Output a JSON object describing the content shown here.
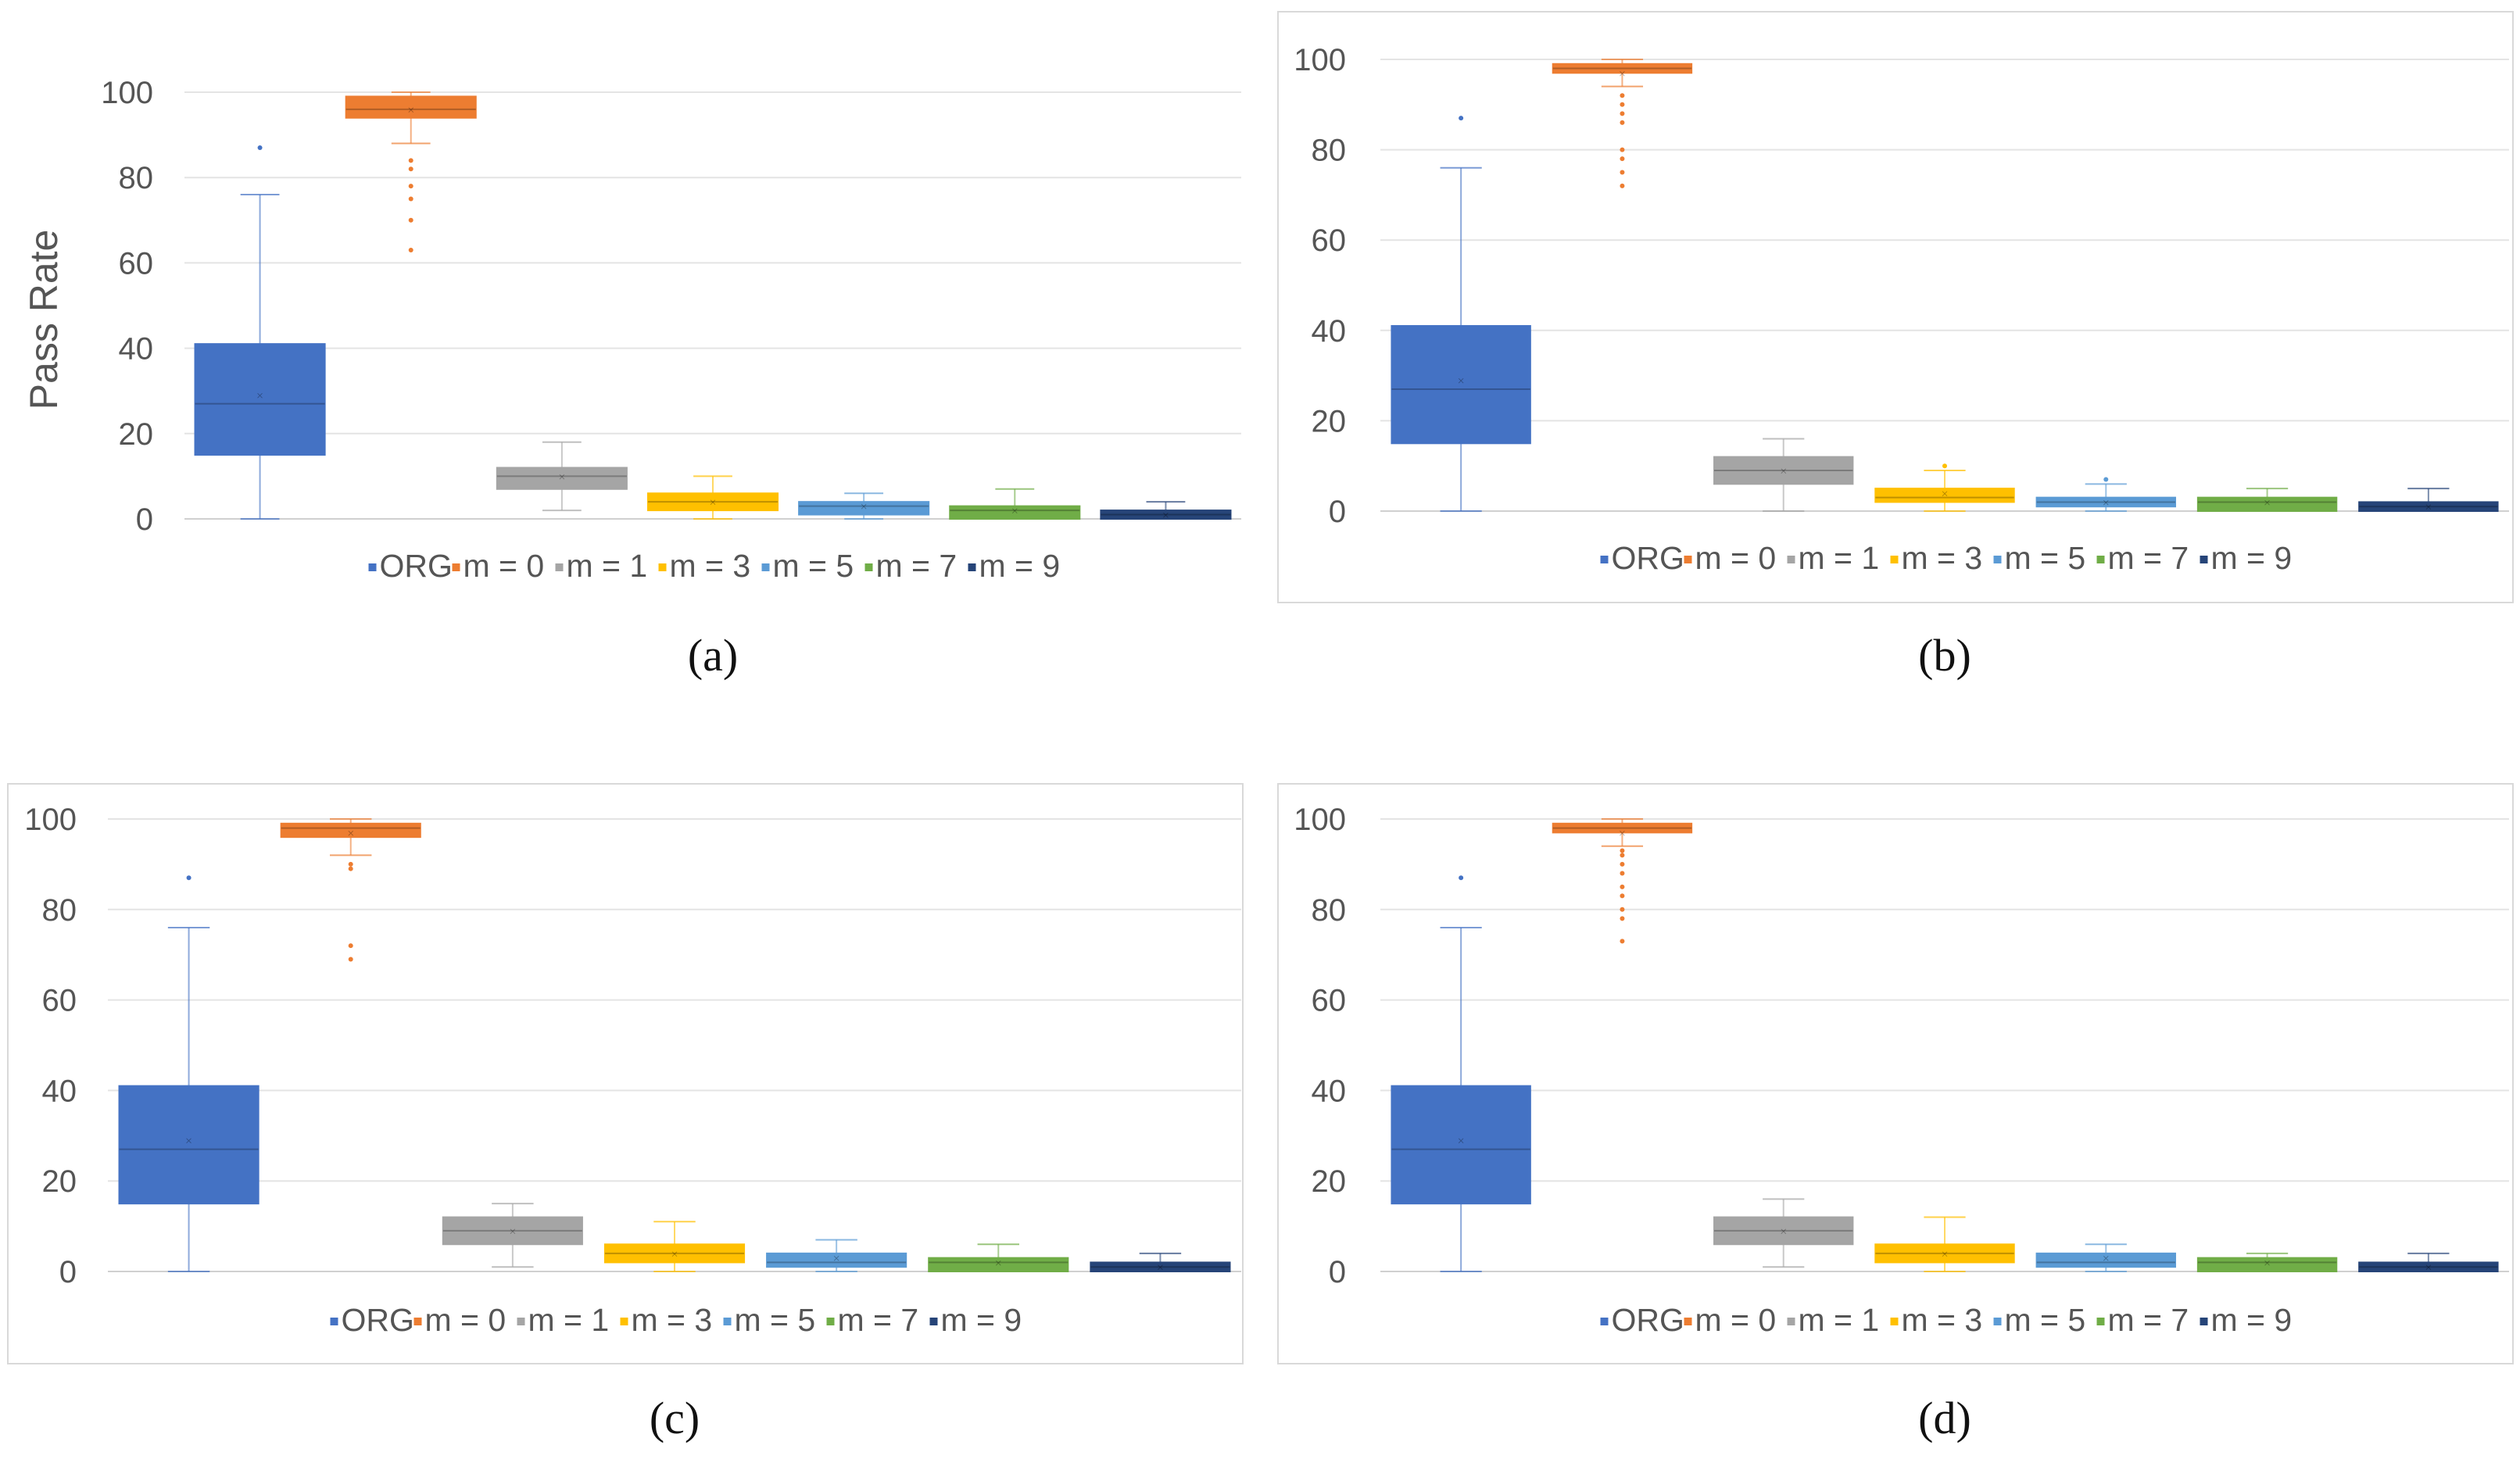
{
  "chart_data": [
    {
      "type": "boxplot",
      "caption": "(a)",
      "ylabel": "Pass Rate",
      "ylim": [
        0,
        100
      ],
      "yticks": [
        0,
        20,
        40,
        60,
        80,
        100
      ],
      "grid": true,
      "legend_position": "bottom",
      "series": [
        {
          "name": "ORG",
          "color": "#4472C4",
          "min": 0,
          "q1": 15,
          "median": 27,
          "q3": 41,
          "max": 76,
          "mean": 29,
          "outliers": [
            87
          ]
        },
        {
          "name": "m = 0",
          "color": "#ED7D31",
          "min": 88,
          "q1": 94,
          "median": 96,
          "q3": 99,
          "max": 100,
          "mean": 96,
          "outliers": [
            84,
            82,
            78,
            75,
            70,
            63
          ]
        },
        {
          "name": "m = 1",
          "color": "#A5A5A5",
          "min": 2,
          "q1": 7,
          "median": 10,
          "q3": 12,
          "max": 18,
          "mean": 10,
          "outliers": []
        },
        {
          "name": "m = 3",
          "color": "#FFC000",
          "min": 0,
          "q1": 2,
          "median": 4,
          "q3": 6,
          "max": 10,
          "mean": 4,
          "outliers": []
        },
        {
          "name": "m = 5",
          "color": "#5B9BD5",
          "min": 0,
          "q1": 1,
          "median": 3,
          "q3": 4,
          "max": 6,
          "mean": 3,
          "outliers": []
        },
        {
          "name": "m = 7",
          "color": "#70AD47",
          "min": 0,
          "q1": 0,
          "median": 2,
          "q3": 3,
          "max": 7,
          "mean": 2,
          "outliers": []
        },
        {
          "name": "m = 9",
          "color": "#264478",
          "min": 0,
          "q1": 0,
          "median": 1,
          "q3": 2,
          "max": 4,
          "mean": 1,
          "outliers": []
        }
      ]
    },
    {
      "type": "boxplot",
      "caption": "(b)",
      "ylabel": "",
      "ylim": [
        0,
        100
      ],
      "yticks": [
        0,
        20,
        40,
        60,
        80,
        100
      ],
      "grid": true,
      "legend_position": "bottom",
      "series": [
        {
          "name": "ORG",
          "color": "#4472C4",
          "min": 0,
          "q1": 15,
          "median": 27,
          "q3": 41,
          "max": 76,
          "mean": 29,
          "outliers": [
            87
          ]
        },
        {
          "name": "m = 0",
          "color": "#ED7D31",
          "min": 94,
          "q1": 97,
          "median": 98,
          "q3": 99,
          "max": 100,
          "mean": 97,
          "outliers": [
            92,
            90,
            88,
            86,
            80,
            78,
            75,
            72
          ]
        },
        {
          "name": "m = 1",
          "color": "#A5A5A5",
          "min": 0,
          "q1": 6,
          "median": 9,
          "q3": 12,
          "max": 16,
          "mean": 9,
          "outliers": []
        },
        {
          "name": "m = 3",
          "color": "#FFC000",
          "min": 0,
          "q1": 2,
          "median": 3,
          "q3": 5,
          "max": 9,
          "mean": 4,
          "outliers": [
            10
          ]
        },
        {
          "name": "m = 5",
          "color": "#5B9BD5",
          "min": 0,
          "q1": 1,
          "median": 2,
          "q3": 3,
          "max": 6,
          "mean": 2,
          "outliers": [
            7
          ]
        },
        {
          "name": "m = 7",
          "color": "#70AD47",
          "min": 0,
          "q1": 0,
          "median": 2,
          "q3": 3,
          "max": 5,
          "mean": 2,
          "outliers": []
        },
        {
          "name": "m = 9",
          "color": "#264478",
          "min": 0,
          "q1": 0,
          "median": 1,
          "q3": 2,
          "max": 5,
          "mean": 1,
          "outliers": []
        }
      ]
    },
    {
      "type": "boxplot",
      "caption": "(c)",
      "ylabel": "",
      "ylim": [
        0,
        100
      ],
      "yticks": [
        0,
        20,
        40,
        60,
        80,
        100
      ],
      "grid": true,
      "legend_position": "bottom",
      "series": [
        {
          "name": "ORG",
          "color": "#4472C4",
          "min": 0,
          "q1": 15,
          "median": 27,
          "q3": 41,
          "max": 76,
          "mean": 29,
          "outliers": [
            87
          ]
        },
        {
          "name": "m = 0",
          "color": "#ED7D31",
          "min": 92,
          "q1": 96,
          "median": 98,
          "q3": 99,
          "max": 100,
          "mean": 97,
          "outliers": [
            90,
            89,
            72,
            69
          ]
        },
        {
          "name": "m = 1",
          "color": "#A5A5A5",
          "min": 1,
          "q1": 6,
          "median": 9,
          "q3": 12,
          "max": 15,
          "mean": 9,
          "outliers": []
        },
        {
          "name": "m = 3",
          "color": "#FFC000",
          "min": 0,
          "q1": 2,
          "median": 4,
          "q3": 6,
          "max": 11,
          "mean": 4,
          "outliers": []
        },
        {
          "name": "m = 5",
          "color": "#5B9BD5",
          "min": 0,
          "q1": 1,
          "median": 2,
          "q3": 4,
          "max": 7,
          "mean": 3,
          "outliers": []
        },
        {
          "name": "m = 7",
          "color": "#70AD47",
          "min": 0,
          "q1": 0,
          "median": 2,
          "q3": 3,
          "max": 6,
          "mean": 2,
          "outliers": []
        },
        {
          "name": "m = 9",
          "color": "#264478",
          "min": 0,
          "q1": 0,
          "median": 1,
          "q3": 2,
          "max": 4,
          "mean": 1,
          "outliers": []
        }
      ]
    },
    {
      "type": "boxplot",
      "caption": "(d)",
      "ylabel": "",
      "ylim": [
        0,
        100
      ],
      "yticks": [
        0,
        20,
        40,
        60,
        80,
        100
      ],
      "grid": true,
      "legend_position": "bottom",
      "series": [
        {
          "name": "ORG",
          "color": "#4472C4",
          "min": 0,
          "q1": 15,
          "median": 27,
          "q3": 41,
          "max": 76,
          "mean": 29,
          "outliers": [
            87
          ]
        },
        {
          "name": "m = 0",
          "color": "#ED7D31",
          "min": 94,
          "q1": 97,
          "median": 98,
          "q3": 99,
          "max": 100,
          "mean": 97,
          "outliers": [
            93,
            92,
            90,
            88,
            85,
            83,
            80,
            78,
            73
          ]
        },
        {
          "name": "m = 1",
          "color": "#A5A5A5",
          "min": 1,
          "q1": 6,
          "median": 9,
          "q3": 12,
          "max": 16,
          "mean": 9,
          "outliers": []
        },
        {
          "name": "m = 3",
          "color": "#FFC000",
          "min": 0,
          "q1": 2,
          "median": 4,
          "q3": 6,
          "max": 12,
          "mean": 4,
          "outliers": []
        },
        {
          "name": "m = 5",
          "color": "#5B9BD5",
          "min": 0,
          "q1": 1,
          "median": 2,
          "q3": 4,
          "max": 6,
          "mean": 3,
          "outliers": []
        },
        {
          "name": "m = 7",
          "color": "#70AD47",
          "min": 0,
          "q1": 0,
          "median": 2,
          "q3": 3,
          "max": 4,
          "mean": 2,
          "outliers": []
        },
        {
          "name": "m = 9",
          "color": "#264478",
          "min": 0,
          "q1": 0,
          "median": 1,
          "q3": 2,
          "max": 4,
          "mean": 1,
          "outliers": []
        }
      ]
    }
  ]
}
